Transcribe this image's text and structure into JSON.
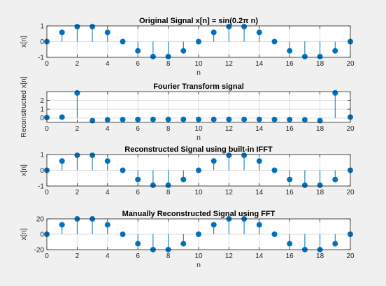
{
  "colors": {
    "figure_bg": "#f0f0f0",
    "axes_bg": "#ffffff",
    "stem": "#0072bd",
    "marker": "#0072bd",
    "grid": "#dcdcdc",
    "axis": "#262626"
  },
  "chart_data": [
    {
      "type": "stem",
      "title": "Original Signal x[n] = sin(0.2π n)",
      "xlabel": "n",
      "ylabel": "x[n]",
      "xlim": [
        0,
        20
      ],
      "ylim": [
        -1,
        1
      ],
      "xticks": [
        0,
        2,
        4,
        6,
        8,
        10,
        12,
        14,
        16,
        18,
        20
      ],
      "yticks": [
        -1,
        0,
        1
      ],
      "grid": true,
      "x": [
        0,
        1,
        2,
        3,
        4,
        5,
        6,
        7,
        8,
        9,
        10,
        11,
        12,
        13,
        14,
        15,
        16,
        17,
        18,
        19,
        20
      ],
      "y": [
        0,
        0.5878,
        0.9511,
        0.9511,
        0.5878,
        0,
        -0.5878,
        -0.9511,
        -0.9511,
        -0.5878,
        0,
        0.5878,
        0.9511,
        0.9511,
        0.5878,
        0,
        -0.5878,
        -0.9511,
        -0.9511,
        -0.5878,
        0
      ]
    },
    {
      "type": "stem",
      "title": "Fourier Transform signal",
      "xlabel": "n",
      "ylabel": "Reconstructed x[n]",
      "xlim": [
        0,
        20
      ],
      "ylim": [
        -0.5,
        3
      ],
      "xticks": [
        0,
        2,
        4,
        6,
        8,
        10,
        12,
        14,
        16,
        18,
        20
      ],
      "yticks": [
        0,
        1,
        2
      ],
      "grid": true,
      "x": [
        0,
        1,
        2,
        3,
        4,
        5,
        6,
        7,
        8,
        9,
        10,
        11,
        12,
        13,
        14,
        15,
        16,
        17,
        18,
        19,
        20
      ],
      "y": [
        0.05,
        0.1,
        2.85,
        -0.3,
        -0.2,
        -0.18,
        -0.17,
        -0.16,
        -0.16,
        -0.16,
        -0.16,
        -0.16,
        -0.16,
        -0.16,
        -0.16,
        -0.17,
        -0.18,
        -0.2,
        -0.3,
        2.85,
        0.1
      ]
    },
    {
      "type": "stem",
      "title": "Reconstructed Signal using built-in IFFT",
      "xlabel": "",
      "ylabel": "x[n]",
      "xlim": [
        0,
        20
      ],
      "ylim": [
        -1,
        1
      ],
      "xticks": [
        0,
        2,
        4,
        6,
        8,
        10,
        12,
        14,
        16,
        18,
        20
      ],
      "yticks": [
        -1,
        0,
        1
      ],
      "grid": true,
      "x": [
        0,
        1,
        2,
        3,
        4,
        5,
        6,
        7,
        8,
        9,
        10,
        11,
        12,
        13,
        14,
        15,
        16,
        17,
        18,
        19,
        20
      ],
      "y": [
        0,
        0.5878,
        0.9511,
        0.9511,
        0.5878,
        0,
        -0.5878,
        -0.9511,
        -0.9511,
        -0.5878,
        0,
        0.5878,
        0.9511,
        0.9511,
        0.5878,
        0,
        -0.5878,
        -0.9511,
        -0.9511,
        -0.5878,
        0
      ]
    },
    {
      "type": "stem",
      "title": "Manually Reconstructed Signal using FFT",
      "xlabel": "n",
      "ylabel": "x[n]",
      "xlim": [
        0,
        20
      ],
      "ylim": [
        -20,
        20
      ],
      "xticks": [
        0,
        2,
        4,
        6,
        8,
        10,
        12,
        14,
        16,
        18,
        20
      ],
      "yticks": [
        -20,
        0,
        20
      ],
      "grid": true,
      "x": [
        0,
        1,
        2,
        3,
        4,
        5,
        6,
        7,
        8,
        9,
        10,
        11,
        12,
        13,
        14,
        15,
        16,
        17,
        18,
        19,
        20
      ],
      "y": [
        0,
        12.3,
        19.97,
        19.97,
        12.3,
        0,
        -12.3,
        -19.97,
        -19.97,
        -12.3,
        0,
        12.3,
        19.97,
        19.97,
        12.3,
        0,
        -12.3,
        -19.97,
        -19.97,
        -12.3,
        0
      ]
    }
  ]
}
